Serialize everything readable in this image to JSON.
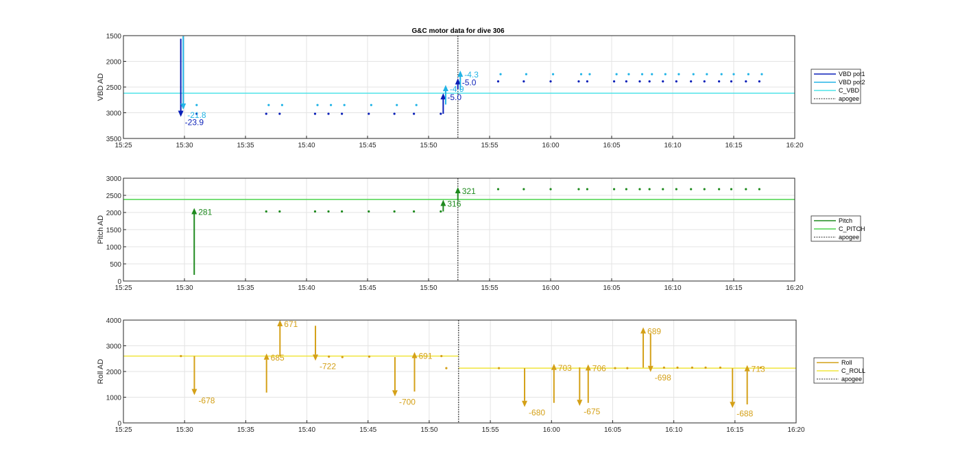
{
  "title": "G&C motor data for dive 306",
  "time_ticks": [
    "15:25",
    "15:30",
    "15:35",
    "15:40",
    "15:45",
    "15:50",
    "15:55",
    "16:00",
    "16:05",
    "16:10",
    "16:15",
    "16:20"
  ],
  "colors": {
    "vbd_pot1": "#0a1fb8",
    "vbd_pot2": "#22b4e6",
    "c_vbd": "#4fe3e8",
    "pitch": "#1e8a1e",
    "c_pitch": "#4cd44c",
    "roll": "#d4a017",
    "c_roll": "#f0e53a",
    "apogee": "#555555",
    "grid": "#e3e3e3"
  },
  "chart_data": [
    {
      "type": "scatter",
      "name": "vbd",
      "ylabel": "VBD AD",
      "ylim": [
        1500,
        3500
      ],
      "y_reversed": true,
      "yticks": [
        1500,
        2000,
        2500,
        3000,
        3500
      ],
      "xlim": [
        "15:25",
        "16:20"
      ],
      "grid": true,
      "legend": [
        "VBD pot1",
        "VBD pot2",
        "C_VBD",
        "apogee"
      ],
      "reference_line": {
        "name": "C_VBD",
        "y": 2620
      },
      "apogee": "15:52.4",
      "series": [
        {
          "name": "VBD pot1",
          "x": [
            "15:31",
            "15:36.7",
            "15:37.8",
            "15:40.7",
            "15:41.8",
            "15:42.9",
            "15:45.1",
            "15:47.2",
            "15:48.8",
            "15:51",
            "15:55.7",
            "15:57.8",
            "16:00",
            "16:02.3",
            "16:03",
            "16:05.2",
            "16:06.2",
            "16:07.3",
            "16:08.1",
            "16:09.2",
            "16:10.3",
            "16:11.5",
            "16:12.6",
            "16:13.8",
            "16:14.8",
            "16:16",
            "16:17.1"
          ],
          "y": [
            3020,
            3020,
            3020,
            3020,
            3020,
            3020,
            3020,
            3020,
            3020,
            3020,
            2390,
            2390,
            2390,
            2390,
            2390,
            2390,
            2390,
            2390,
            2390,
            2390,
            2390,
            2390,
            2390,
            2390,
            2390,
            2390,
            2390
          ]
        },
        {
          "name": "VBD pot2",
          "x": [
            "15:31",
            "15:36.9",
            "15:38",
            "15:40.9",
            "15:42",
            "15:43.1",
            "15:45.3",
            "15:47.4",
            "15:49",
            "15:55.9",
            "15:58",
            "16:00.2",
            "16:02.5",
            "16:03.2",
            "16:05.4",
            "16:06.4",
            "16:07.5",
            "16:08.3",
            "16:09.4",
            "16:10.5",
            "16:11.7",
            "16:12.8",
            "16:14",
            "16:15",
            "16:16.2",
            "16:17.3"
          ],
          "y": [
            2850,
            2850,
            2850,
            2850,
            2850,
            2850,
            2850,
            2850,
            2850,
            2250,
            2250,
            2250,
            2250,
            2250,
            2250,
            2250,
            2250,
            2250,
            2250,
            2250,
            2250,
            2250,
            2250,
            2250,
            2250,
            2250
          ]
        }
      ],
      "arrows": [
        {
          "series": "VBD pot1",
          "x": "15:29.7",
          "from": 1560,
          "to": 3080,
          "label": "-23.9"
        },
        {
          "series": "VBD pot2",
          "x": "15:29.9",
          "from": 1510,
          "to": 2940,
          "label": "-21.8"
        },
        {
          "series": "VBD pot1",
          "x": "15:51.2",
          "from": 3020,
          "to": 2620,
          "label": "-5.0"
        },
        {
          "series": "VBD pot2",
          "x": "15:51.4",
          "from": 2840,
          "to": 2460,
          "label": "-4.9"
        },
        {
          "series": "VBD pot1",
          "x": "15:52.4",
          "from": 2540,
          "to": 2330,
          "label": "-5.0"
        },
        {
          "series": "VBD pot2",
          "x": "15:52.6",
          "from": 2560,
          "to": 2180,
          "label": "-4.3"
        }
      ]
    },
    {
      "type": "scatter",
      "name": "pitch",
      "ylabel": "Pitch AD",
      "ylim": [
        0,
        3000
      ],
      "yticks": [
        0,
        500,
        1000,
        1500,
        2000,
        2500,
        3000
      ],
      "xlim": [
        "15:25",
        "16:20"
      ],
      "grid": true,
      "legend": [
        "Pitch",
        "C_PITCH",
        "apogee"
      ],
      "reference_line": {
        "name": "C_PITCH",
        "y": 2380
      },
      "apogee": "15:52.4",
      "series": [
        {
          "name": "Pitch",
          "x": [
            "15:36.7",
            "15:37.8",
            "15:40.7",
            "15:41.8",
            "15:42.9",
            "15:45.1",
            "15:47.2",
            "15:48.8",
            "15:51",
            "15:55.7",
            "15:57.8",
            "16:00",
            "16:02.3",
            "16:03",
            "16:05.2",
            "16:06.2",
            "16:07.3",
            "16:08.1",
            "16:09.2",
            "16:10.3",
            "16:11.5",
            "16:12.6",
            "16:13.8",
            "16:14.8",
            "16:16",
            "16:17.1"
          ],
          "y": [
            2030,
            2030,
            2030,
            2030,
            2030,
            2030,
            2030,
            2030,
            2030,
            2680,
            2680,
            2680,
            2680,
            2680,
            2680,
            2680,
            2680,
            2680,
            2680,
            2680,
            2680,
            2680,
            2680,
            2680,
            2680,
            2680
          ]
        }
      ],
      "arrows": [
        {
          "series": "Pitch",
          "x": "15:30.8",
          "from": 180,
          "to": 2130,
          "label": "281"
        },
        {
          "series": "Pitch",
          "x": "15:51.2",
          "from": 2030,
          "to": 2370,
          "label": "316"
        },
        {
          "series": "Pitch",
          "x": "15:52.4",
          "from": 2360,
          "to": 2740,
          "label": "321"
        }
      ]
    },
    {
      "type": "scatter",
      "name": "roll",
      "ylabel": "Roll AD",
      "ylim": [
        0,
        4000
      ],
      "yticks": [
        0,
        1000,
        2000,
        3000,
        4000
      ],
      "xlim": [
        "15:25",
        "16:20"
      ],
      "grid": true,
      "legend": [
        "Roll",
        "C_ROLL",
        "apogee"
      ],
      "reference_lines": [
        {
          "name": "C_ROLL",
          "from": "15:25",
          "to": "15:52.4",
          "y": 2600
        },
        {
          "name": "C_ROLL",
          "from": "15:52.4",
          "to": "16:20",
          "y": 2130
        }
      ],
      "apogee": "15:52.4",
      "series": [
        {
          "name": "Roll",
          "x": [
            "15:29.7",
            "15:41.8",
            "15:42.9",
            "15:45.1",
            "15:51",
            "15:51.4",
            "15:55.7",
            "16:05.2",
            "16:06.2",
            "16:09.2",
            "16:10.3",
            "16:11.5",
            "16:12.6",
            "16:13.8",
            "16:17.1"
          ],
          "y": [
            2600,
            2580,
            2560,
            2580,
            2600,
            2130,
            2130,
            2130,
            2130,
            2150,
            2150,
            2150,
            2150,
            2150,
            2150
          ]
        }
      ],
      "arrows": [
        {
          "series": "Roll",
          "x": "15:30.8",
          "from": 2600,
          "to": 1080,
          "label": "-678"
        },
        {
          "series": "Roll",
          "x": "15:36.7",
          "from": 1180,
          "to": 2700,
          "label": "685"
        },
        {
          "series": "Roll",
          "x": "15:37.8",
          "from": 2600,
          "to": 4000,
          "label": "671"
        },
        {
          "series": "Roll",
          "x": "15:40.7",
          "from": 3780,
          "to": 2420,
          "label": "-722"
        },
        {
          "series": "Roll",
          "x": "15:47.2",
          "from": 2560,
          "to": 1030,
          "label": "-700"
        },
        {
          "series": "Roll",
          "x": "15:48.8",
          "from": 1220,
          "to": 2760,
          "label": "691"
        },
        {
          "series": "Roll",
          "x": "15:57.8",
          "from": 2130,
          "to": 620,
          "label": "-680"
        },
        {
          "series": "Roll",
          "x": "16:00.2",
          "from": 780,
          "to": 2300,
          "label": "703"
        },
        {
          "series": "Roll",
          "x": "16:02.3",
          "from": 2160,
          "to": 660,
          "label": "-675"
        },
        {
          "series": "Roll",
          "x": "16:03",
          "from": 780,
          "to": 2280,
          "label": "706"
        },
        {
          "series": "Roll",
          "x": "16:07.5",
          "from": 2150,
          "to": 3720,
          "label": "689"
        },
        {
          "series": "Roll",
          "x": "16:08.1",
          "from": 3470,
          "to": 1980,
          "label": "-698"
        },
        {
          "series": "Roll",
          "x": "16:14.8",
          "from": 2130,
          "to": 580,
          "label": "-688"
        },
        {
          "series": "Roll",
          "x": "16:16",
          "from": 720,
          "to": 2250,
          "label": "713"
        }
      ]
    }
  ]
}
